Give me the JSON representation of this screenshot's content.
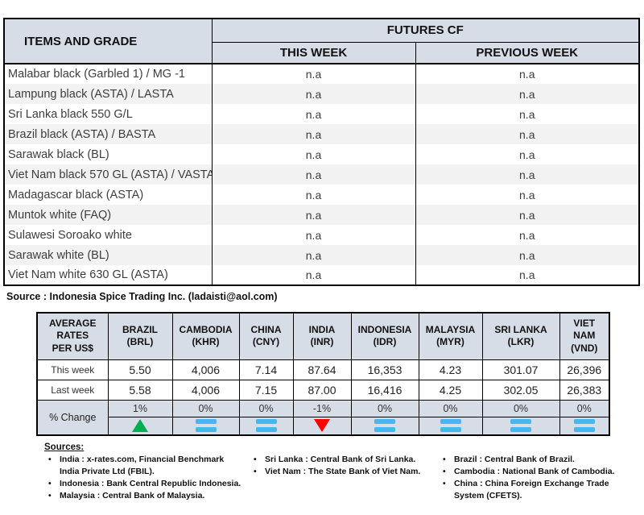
{
  "futures": {
    "items_header": "ITEMS AND GRADE",
    "group_header": "FUTURES CF",
    "col_this_week": "THIS WEEK",
    "col_previous_week": "PREVIOUS WEEK",
    "rows": [
      {
        "item": "Malabar black (Garbled 1) / MG -1",
        "this_week": "n.a",
        "previous_week": "n.a"
      },
      {
        "item": "Lampung black (ASTA) / LASTA",
        "this_week": "n.a",
        "previous_week": "n.a"
      },
      {
        "item": "Sri Lanka black 550 G/L",
        "this_week": "n.a",
        "previous_week": "n.a"
      },
      {
        "item": "Brazil black (ASTA) / BASTA",
        "this_week": "n.a",
        "previous_week": "n.a"
      },
      {
        "item": "Sarawak black (BL)",
        "this_week": "n.a",
        "previous_week": "n.a"
      },
      {
        "item": "Viet Nam black 570 GL (ASTA) / VASTA",
        "this_week": "n.a",
        "previous_week": "n.a"
      },
      {
        "item": "Madagascar black (ASTA)",
        "this_week": "n.a",
        "previous_week": "n.a"
      },
      {
        "item": "Muntok white (FAQ)",
        "this_week": "n.a",
        "previous_week": "n.a"
      },
      {
        "item": "Sulawesi Soroako white",
        "this_week": "n.a",
        "previous_week": "n.a"
      },
      {
        "item": "Sarawak  white (BL)",
        "this_week": "n.a",
        "previous_week": "n.a"
      },
      {
        "item": "Viet Nam white 630 GL (ASTA)",
        "this_week": "n.a",
        "previous_week": "n.a"
      }
    ]
  },
  "source_line": "Source : Indonesia Spice Trading Inc. (ladaisti@aol.com)",
  "rates": {
    "label_lines": [
      "AVERAGE",
      "RATES",
      "PER US$"
    ],
    "row_labels": {
      "this_week": "This week",
      "last_week": "Last week",
      "pct_change": "% Change"
    },
    "columns": [
      {
        "country": "BRAZIL",
        "code": "(BRL)",
        "this_week": "5.50",
        "last_week": "5.58",
        "pct": "1%",
        "trend": "up"
      },
      {
        "country": "CAMBODIA",
        "code": "(KHR)",
        "this_week": "4,006",
        "last_week": "4,006",
        "pct": "0%",
        "trend": "flat"
      },
      {
        "country": "CHINA",
        "code": "(CNY)",
        "this_week": "7.14",
        "last_week": "7.15",
        "pct": "0%",
        "trend": "flat"
      },
      {
        "country": "INDIA",
        "code": "(INR)",
        "this_week": "87.64",
        "last_week": "87.00",
        "pct": "-1%",
        "trend": "down"
      },
      {
        "country": "INDONESIA",
        "code": "(IDR)",
        "this_week": "16,353",
        "last_week": "16,416",
        "pct": "0%",
        "trend": "flat"
      },
      {
        "country": "MALAYSIA",
        "code": "(MYR)",
        "this_week": "4.23",
        "last_week": "4.25",
        "pct": "0%",
        "trend": "flat"
      },
      {
        "country": "SRI LANKA",
        "code": "(LKR)",
        "this_week": "301.07",
        "last_week": "302.05",
        "pct": "0%",
        "trend": "flat"
      },
      {
        "country": "VIET NAM",
        "code": "(VND)",
        "this_week": "26,396",
        "last_week": "26,383",
        "pct": "0%",
        "trend": "flat"
      }
    ]
  },
  "sources": {
    "heading": "Sources:",
    "col1": [
      "India : x-rates.com, Financial Benchmark India Private Ltd (FBIL).",
      "Indonesia : Bank Central Republic Indonesia.",
      "Malaysia : Central Bank of Malaysia."
    ],
    "col2": [
      "Sri Lanka : Central Bank of Sri Lanka.",
      "Viet Nam : The State Bank of Viet Nam."
    ],
    "col3": [
      "Brazil :  Central Bank of Brazil.",
      "Cambodia : National Bank of Cambodia.",
      "China : China Foreign Exchange Trade System (CFETS)."
    ]
  },
  "colors": {
    "header_bg": "#d7dde6",
    "alt_row_bg": "#f2f2f2",
    "up_green": "#00b050",
    "down_red": "#fe0000",
    "flat_blue": "#45b6ee",
    "border_black": "#000000"
  }
}
